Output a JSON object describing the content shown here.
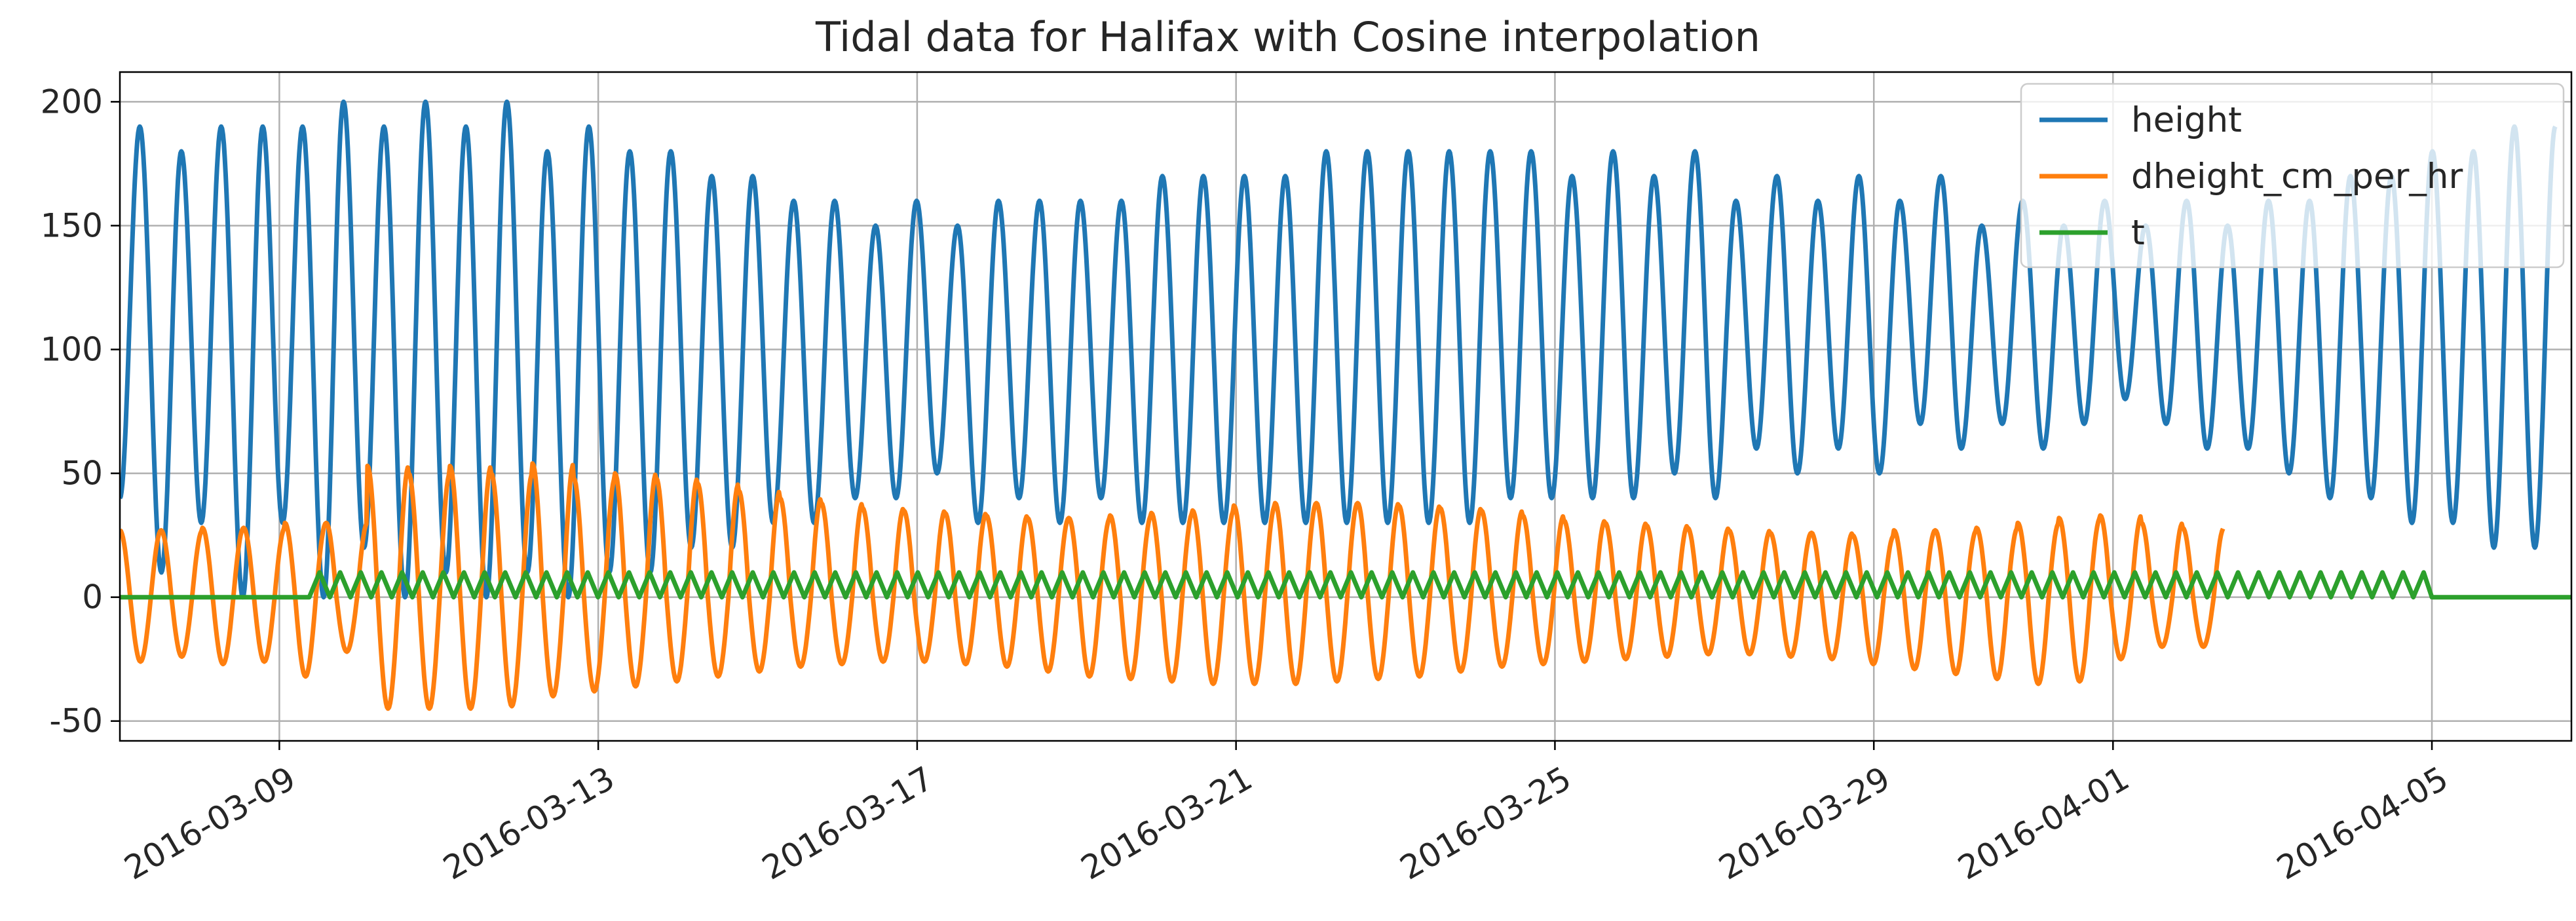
{
  "chart_data": {
    "type": "line",
    "title": "Tidal data for Halifax with Cosine interpolation",
    "xlabel": "",
    "ylabel": "",
    "x_axis_kind": "date",
    "xlim": [
      "2016-03-07T00:00",
      "2016-04-06T18:00"
    ],
    "ylim": [
      -58,
      212
    ],
    "grid": true,
    "legend_position": "top-right",
    "x_ticks": [
      {
        "date": "2016-03-09",
        "label": "2016-03-09"
      },
      {
        "date": "2016-03-13",
        "label": "2016-03-13"
      },
      {
        "date": "2016-03-17",
        "label": "2016-03-17"
      },
      {
        "date": "2016-03-21",
        "label": "2016-03-21"
      },
      {
        "date": "2016-03-25",
        "label": "2016-03-25"
      },
      {
        "date": "2016-03-29",
        "label": "2016-03-29"
      },
      {
        "date": "2016-04-01",
        "label": "2016-04-01"
      },
      {
        "date": "2016-04-05",
        "label": "2016-04-05"
      }
    ],
    "y_ticks": [
      200,
      150,
      100,
      50,
      0,
      -50
    ],
    "series": [
      {
        "name": "height",
        "color": "#1f77b4",
        "extrema": [
          [
            "2016-03-07T00:00",
            40
          ],
          [
            "2016-03-07T06:00",
            190
          ],
          [
            "2016-03-07T12:30",
            10
          ],
          [
            "2016-03-07T18:30",
            180
          ],
          [
            "2016-03-08T00:30",
            30
          ],
          [
            "2016-03-08T06:30",
            190
          ],
          [
            "2016-03-08T13:00",
            0
          ],
          [
            "2016-03-08T19:00",
            190
          ],
          [
            "2016-03-09T01:00",
            30
          ],
          [
            "2016-03-09T07:00",
            190
          ],
          [
            "2016-03-09T13:20",
            0
          ],
          [
            "2016-03-09T19:20",
            200
          ],
          [
            "2016-03-10T01:30",
            20
          ],
          [
            "2016-03-10T07:30",
            190
          ],
          [
            "2016-03-10T13:50",
            0
          ],
          [
            "2016-03-10T20:00",
            200
          ],
          [
            "2016-03-11T02:10",
            10
          ],
          [
            "2016-03-11T08:10",
            190
          ],
          [
            "2016-03-11T14:20",
            0
          ],
          [
            "2016-03-11T20:30",
            200
          ],
          [
            "2016-03-12T02:40",
            10
          ],
          [
            "2016-03-12T08:40",
            180
          ],
          [
            "2016-03-12T15:00",
            0
          ],
          [
            "2016-03-12T21:10",
            190
          ],
          [
            "2016-03-13T03:20",
            10
          ],
          [
            "2016-03-13T09:30",
            180
          ],
          [
            "2016-03-13T15:40",
            10
          ],
          [
            "2016-03-13T21:50",
            180
          ],
          [
            "2016-03-14T04:00",
            20
          ],
          [
            "2016-03-14T10:10",
            170
          ],
          [
            "2016-03-14T16:20",
            20
          ],
          [
            "2016-03-14T22:30",
            170
          ],
          [
            "2016-03-15T04:40",
            30
          ],
          [
            "2016-03-15T10:50",
            160
          ],
          [
            "2016-03-15T17:00",
            30
          ],
          [
            "2016-03-15T23:10",
            160
          ],
          [
            "2016-03-16T05:20",
            40
          ],
          [
            "2016-03-16T11:30",
            150
          ],
          [
            "2016-03-16T17:40",
            40
          ],
          [
            "2016-03-16T23:50",
            160
          ],
          [
            "2016-03-17T06:00",
            50
          ],
          [
            "2016-03-17T12:10",
            150
          ],
          [
            "2016-03-17T18:20",
            30
          ],
          [
            "2016-03-18T00:30",
            160
          ],
          [
            "2016-03-18T06:40",
            40
          ],
          [
            "2016-03-18T12:50",
            160
          ],
          [
            "2016-03-18T19:00",
            30
          ],
          [
            "2016-03-19T01:10",
            160
          ],
          [
            "2016-03-19T07:20",
            40
          ],
          [
            "2016-03-19T13:30",
            160
          ],
          [
            "2016-03-19T19:40",
            30
          ],
          [
            "2016-03-20T01:50",
            170
          ],
          [
            "2016-03-20T08:00",
            30
          ],
          [
            "2016-03-20T14:10",
            170
          ],
          [
            "2016-03-20T20:20",
            30
          ],
          [
            "2016-03-21T02:30",
            170
          ],
          [
            "2016-03-21T08:40",
            30
          ],
          [
            "2016-03-21T14:50",
            170
          ],
          [
            "2016-03-21T21:00",
            30
          ],
          [
            "2016-03-22T03:10",
            180
          ],
          [
            "2016-03-22T09:20",
            30
          ],
          [
            "2016-03-22T15:30",
            180
          ],
          [
            "2016-03-22T21:40",
            30
          ],
          [
            "2016-03-23T03:50",
            180
          ],
          [
            "2016-03-23T10:00",
            30
          ],
          [
            "2016-03-23T16:10",
            180
          ],
          [
            "2016-03-23T22:20",
            30
          ],
          [
            "2016-03-24T04:30",
            180
          ],
          [
            "2016-03-24T10:40",
            40
          ],
          [
            "2016-03-24T16:50",
            180
          ],
          [
            "2016-03-24T23:00",
            40
          ],
          [
            "2016-03-25T05:10",
            170
          ],
          [
            "2016-03-25T11:20",
            40
          ],
          [
            "2016-03-25T17:30",
            180
          ],
          [
            "2016-03-25T23:40",
            40
          ],
          [
            "2016-03-26T05:50",
            170
          ],
          [
            "2016-03-26T12:00",
            50
          ],
          [
            "2016-03-26T18:10",
            180
          ],
          [
            "2016-03-27T00:20",
            40
          ],
          [
            "2016-03-27T06:30",
            160
          ],
          [
            "2016-03-27T12:40",
            60
          ],
          [
            "2016-03-27T18:50",
            170
          ],
          [
            "2016-03-28T01:00",
            50
          ],
          [
            "2016-03-28T07:10",
            160
          ],
          [
            "2016-03-28T13:20",
            60
          ],
          [
            "2016-03-28T19:30",
            170
          ],
          [
            "2016-03-29T01:40",
            50
          ],
          [
            "2016-03-29T07:50",
            160
          ],
          [
            "2016-03-29T14:00",
            70
          ],
          [
            "2016-03-29T20:10",
            170
          ],
          [
            "2016-03-30T02:20",
            60
          ],
          [
            "2016-03-30T08:30",
            150
          ],
          [
            "2016-03-30T14:40",
            70
          ],
          [
            "2016-03-30T20:50",
            160
          ],
          [
            "2016-03-31T03:00",
            60
          ],
          [
            "2016-03-31T09:10",
            150
          ],
          [
            "2016-03-31T15:20",
            70
          ],
          [
            "2016-03-31T21:30",
            160
          ],
          [
            "2016-04-01T03:40",
            80
          ],
          [
            "2016-04-01T09:50",
            150
          ],
          [
            "2016-04-01T16:00",
            70
          ],
          [
            "2016-04-01T22:10",
            160
          ],
          [
            "2016-04-02T04:20",
            60
          ],
          [
            "2016-04-02T10:30",
            150
          ],
          [
            "2016-04-02T16:40",
            60
          ],
          [
            "2016-04-02T22:50",
            160
          ],
          [
            "2016-04-03T05:00",
            50
          ],
          [
            "2016-04-03T11:10",
            160
          ],
          [
            "2016-04-03T17:20",
            40
          ],
          [
            "2016-04-03T23:30",
            170
          ],
          [
            "2016-04-04T05:40",
            40
          ],
          [
            "2016-04-04T11:50",
            170
          ],
          [
            "2016-04-04T18:00",
            30
          ],
          [
            "2016-04-05T00:10",
            180
          ],
          [
            "2016-04-05T06:20",
            30
          ],
          [
            "2016-04-05T12:30",
            180
          ],
          [
            "2016-04-05T18:40",
            20
          ],
          [
            "2016-04-06T00:50",
            190
          ],
          [
            "2016-04-06T07:00",
            20
          ],
          [
            "2016-04-06T13:10",
            190
          ]
        ]
      },
      {
        "name": "dheight_cm_per_hr",
        "color": "#ff7f0e",
        "note_values": "rate of change of height, peaks between about -46 and 54",
        "peak_amplitudes": [
          27,
          27,
          28,
          28,
          30,
          30,
          53,
          50,
          53,
          50,
          54,
          48,
          50,
          48,
          46,
          43,
          40,
          38,
          36,
          35,
          34,
          33,
          32,
          32,
          33,
          34,
          35,
          37,
          38,
          38,
          38,
          37,
          36,
          35,
          33,
          31,
          30,
          29,
          28,
          27,
          26,
          26,
          25,
          27,
          27,
          28,
          30,
          32,
          33,
          30,
          28
        ],
        "trough_amplitudes": [
          -26,
          -24,
          -27,
          -26,
          -32,
          -22,
          -45,
          -45,
          -45,
          -44,
          -40,
          -38,
          -36,
          -34,
          -32,
          -30,
          -28,
          -27,
          -26,
          -26,
          -27,
          -28,
          -30,
          -32,
          -33,
          -34,
          -35,
          -35,
          -35,
          -34,
          -33,
          -32,
          -30,
          -28,
          -27,
          -26,
          -25,
          -24,
          -23,
          -23,
          -24,
          -25,
          -27,
          -29,
          -31,
          -33,
          -35,
          -34,
          -25,
          -20,
          -20
        ]
      },
      {
        "name": "t",
        "color": "#2ca02c",
        "sawtooth": {
          "start": "2016-03-09T09:00",
          "end": "2016-04-05T00:00",
          "min": 0,
          "max": 10,
          "flat_value_outside": 0
        }
      }
    ]
  }
}
